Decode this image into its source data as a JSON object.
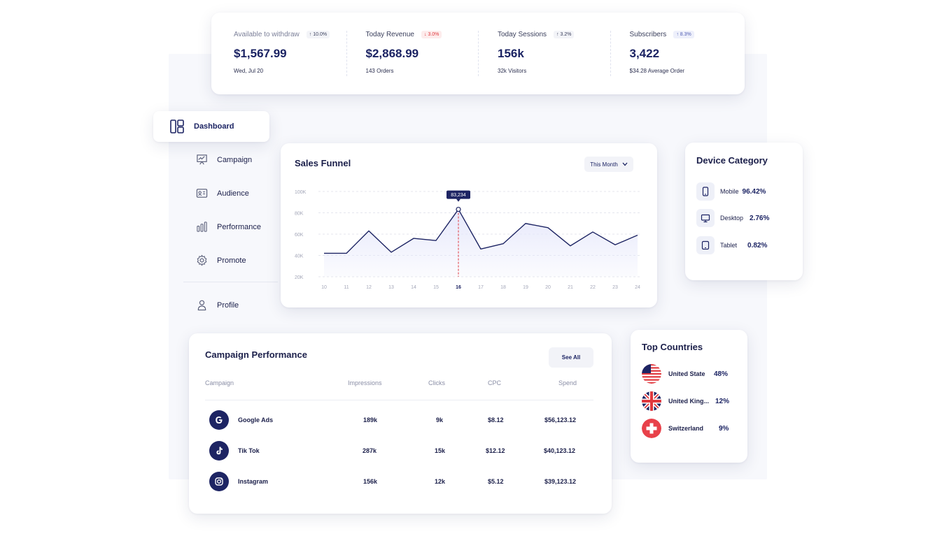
{
  "stats": [
    {
      "label": "Available to withdraw",
      "trend": "↑ 10.0%",
      "value": "$1,567.99",
      "sub": "Wed, Jul 20"
    },
    {
      "label": "Today Revenue",
      "trend": "↓ 3.0%",
      "value": "$2,868.99",
      "sub": "143 Orders"
    },
    {
      "label": "Today Sessions",
      "trend": "↑ 3.2%",
      "value": "156k",
      "sub": "32k Visitors"
    },
    {
      "label": "Subscribers",
      "trend": "↑ 8.3%",
      "value": "3,422",
      "sub": "$34.28 Average Order"
    }
  ],
  "sidebar": {
    "active": "Dashboard",
    "items": [
      {
        "label": "Campaign",
        "icon": "presentation-icon"
      },
      {
        "label": "Audience",
        "icon": "id-card-icon"
      },
      {
        "label": "Performance",
        "icon": "bar-chart-icon"
      },
      {
        "label": "Promote",
        "icon": "gear-icon"
      },
      {
        "label": "Profile",
        "icon": "user-icon"
      }
    ]
  },
  "sales_funnel": {
    "title": "Sales Funnel",
    "period": "This Month",
    "tooltip": "83,234"
  },
  "chart_data": {
    "type": "area",
    "title": "Sales Funnel",
    "x": [
      10,
      11,
      12,
      13,
      14,
      15,
      16,
      17,
      18,
      19,
      20,
      21,
      22,
      23,
      24
    ],
    "values": [
      42000,
      42000,
      63000,
      43000,
      56000,
      54000,
      83234,
      46000,
      51000,
      70000,
      66000,
      49000,
      62000,
      50000,
      59000
    ],
    "yticks": [
      "100K",
      "80K",
      "60K",
      "40K",
      "20K"
    ],
    "ylim": [
      20000,
      100000
    ],
    "highlight_x": 16,
    "grid": true,
    "line_color": "#1d2463",
    "fill_color": "#e6e8fb",
    "marker_color": "#e0383e"
  },
  "device": {
    "title": "Device Category",
    "items": [
      {
        "name": "Mobile",
        "pct": "96.42%"
      },
      {
        "name": "Desktop",
        "pct": "2.76%"
      },
      {
        "name": "Tablet",
        "pct": "0.82%"
      }
    ]
  },
  "campaign": {
    "title": "Campaign Performance",
    "see_all": "See All",
    "headers": [
      "Campaign",
      "Impressions",
      "Clicks",
      "CPC",
      "Spend"
    ],
    "rows": [
      {
        "name": "Google Ads",
        "icon": "google-icon",
        "impressions": "189k",
        "clicks": "9k",
        "cpc": "$8.12",
        "spend": "$56,123.12"
      },
      {
        "name": "Tik Tok",
        "icon": "tiktok-icon",
        "impressions": "287k",
        "clicks": "15k",
        "cpc": "$12.12",
        "spend": "$40,123.12"
      },
      {
        "name": "Instagram",
        "icon": "instagram-icon",
        "impressions": "156k",
        "clicks": "12k",
        "cpc": "$5.12",
        "spend": "$39,123.12"
      }
    ]
  },
  "countries": {
    "title": "Top Countries",
    "items": [
      {
        "name": "United State",
        "pct": "48%",
        "flag": "us-flag-icon"
      },
      {
        "name": "United King...",
        "pct": "12%",
        "flag": "uk-flag-icon"
      },
      {
        "name": "Switzerland",
        "pct": "9%",
        "flag": "swiss-flag-icon"
      }
    ]
  },
  "colors": {
    "primary": "#1d2463",
    "accent_red": "#e0383e",
    "panel_bg": "#f7f8fc"
  }
}
